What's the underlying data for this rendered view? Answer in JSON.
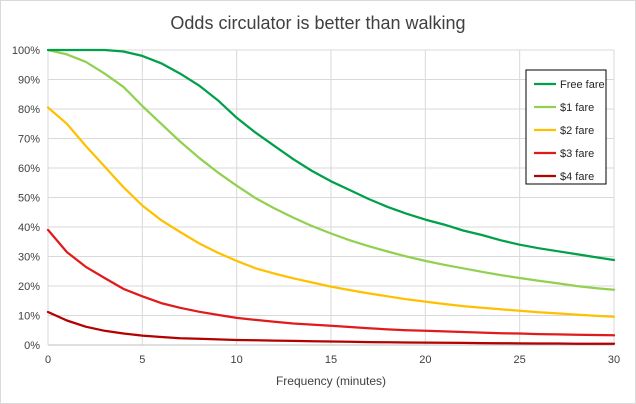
{
  "chart_data": {
    "type": "line",
    "title": "Odds circulator is better than walking",
    "xlabel": "Frequency (minutes)",
    "ylabel": "",
    "xlim": [
      0,
      30
    ],
    "ylim": [
      0,
      100
    ],
    "x_ticks": [
      0,
      5,
      10,
      15,
      20,
      25,
      30
    ],
    "y_ticks": [
      "0%",
      "10%",
      "20%",
      "30%",
      "40%",
      "50%",
      "60%",
      "70%",
      "80%",
      "90%",
      "100%"
    ],
    "grid": true,
    "legend_position": "top-right",
    "x": [
      0,
      1,
      2,
      3,
      4,
      5,
      6,
      7,
      8,
      9,
      10,
      11,
      12,
      13,
      14,
      15,
      16,
      17,
      18,
      19,
      20,
      21,
      22,
      23,
      24,
      25,
      26,
      27,
      28,
      29,
      30
    ],
    "series": [
      {
        "name": "Free fare",
        "color": "#00a04b",
        "values": [
          100,
          100,
          100,
          100,
          99.5,
          98,
          95.5,
          92,
          88,
          83,
          77,
          72,
          67.5,
          63,
          59,
          55.5,
          52.5,
          49.5,
          46.8,
          44.5,
          42.5,
          40.8,
          38.8,
          37.3,
          35.5,
          34,
          32.8,
          31.8,
          30.8,
          29.8,
          28.8
        ]
      },
      {
        "name": "$1 fare",
        "color": "#92d050",
        "values": [
          100,
          98.5,
          96,
          92,
          87.5,
          81,
          75,
          69,
          63.5,
          58.5,
          54,
          49.8,
          46.3,
          43.2,
          40.3,
          37.8,
          35.5,
          33.5,
          31.7,
          30,
          28.5,
          27.2,
          26,
          24.8,
          23.7,
          22.7,
          21.8,
          20.9,
          20,
          19.3,
          18.7
        ]
      },
      {
        "name": "$2 fare",
        "color": "#ffc000",
        "values": [
          80.5,
          75,
          67.5,
          60.5,
          53.5,
          47.3,
          42.3,
          38.3,
          34.5,
          31.3,
          28.5,
          26,
          24.2,
          22.6,
          21.2,
          19.8,
          18.6,
          17.5,
          16.5,
          15.5,
          14.7,
          13.9,
          13.2,
          12.6,
          12.1,
          11.6,
          11.1,
          10.7,
          10.3,
          9.9,
          9.6
        ]
      },
      {
        "name": "$3 fare",
        "color": "#e01b1b",
        "values": [
          39,
          31.5,
          26.5,
          22.7,
          19,
          16.5,
          14.2,
          12.6,
          11.3,
          10.2,
          9.2,
          8.5,
          7.9,
          7.3,
          6.9,
          6.5,
          6.1,
          5.7,
          5.3,
          5,
          4.8,
          4.6,
          4.4,
          4.2,
          4,
          3.9,
          3.7,
          3.6,
          3.5,
          3.4,
          3.3
        ]
      },
      {
        "name": "$4 fare",
        "color": "#b30000",
        "values": [
          11.2,
          8.3,
          6.2,
          4.8,
          3.9,
          3.2,
          2.7,
          2.3,
          2.1,
          1.9,
          1.7,
          1.6,
          1.5,
          1.4,
          1.3,
          1.2,
          1.1,
          1,
          0.9,
          0.85,
          0.8,
          0.75,
          0.7,
          0.65,
          0.6,
          0.55,
          0.5,
          0.5,
          0.45,
          0.4,
          0.4
        ]
      }
    ]
  }
}
